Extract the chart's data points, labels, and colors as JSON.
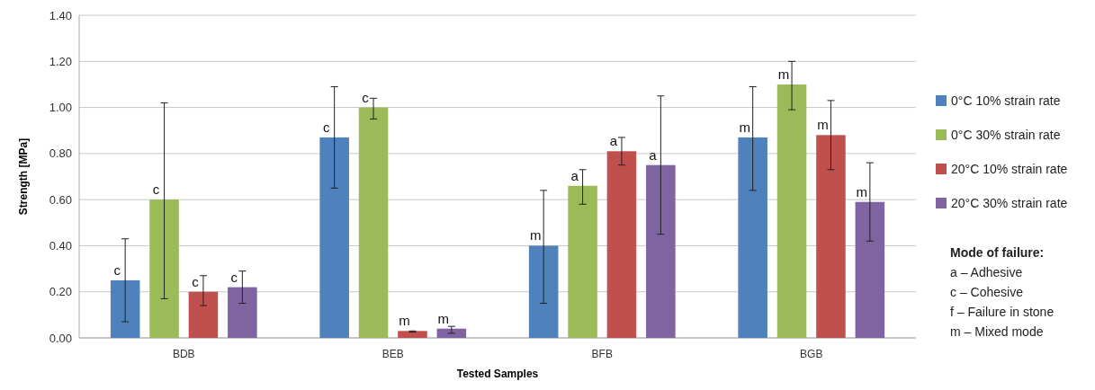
{
  "chart_data": {
    "type": "bar",
    "xlabel": "Tested Samples",
    "ylabel": "Strength [MPa]",
    "categories": [
      "BDB",
      "BEB",
      "BFB",
      "BGB"
    ],
    "series": [
      {
        "name": "0°C 10% strain rate",
        "color": "#4f81bd",
        "values": [
          0.25,
          0.87,
          0.4,
          0.87
        ],
        "errors": [
          [
            0.07,
            0.43
          ],
          [
            0.65,
            1.09
          ],
          [
            0.15,
            0.64
          ],
          [
            0.64,
            1.09
          ]
        ],
        "value_labels": [
          "c",
          "c",
          "m",
          "m"
        ]
      },
      {
        "name": "0°C 30% strain rate",
        "color": "#9bbb59",
        "values": [
          0.6,
          1.0,
          0.66,
          1.1
        ],
        "errors": [
          [
            0.17,
            1.02
          ],
          [
            0.95,
            1.04
          ],
          [
            0.58,
            0.73
          ],
          [
            0.99,
            1.2
          ]
        ],
        "value_labels": [
          "c",
          "c",
          "a",
          "m"
        ]
      },
      {
        "name": "20°C 10% strain rate",
        "color": "#c0504d",
        "values": [
          0.2,
          0.03,
          0.81,
          0.88
        ],
        "errors": [
          [
            0.14,
            0.27
          ],
          [
            0.025,
            0.03
          ],
          [
            0.75,
            0.87
          ],
          [
            0.73,
            1.03
          ]
        ],
        "value_labels": [
          "c",
          "m",
          "a",
          "m"
        ]
      },
      {
        "name": "20°C 30% strain rate",
        "color": "#8064a2",
        "values": [
          0.22,
          0.04,
          0.75,
          0.59
        ],
        "errors": [
          [
            0.15,
            0.29
          ],
          [
            0.02,
            0.05
          ],
          [
            0.45,
            1.05
          ],
          [
            0.42,
            0.76
          ]
        ],
        "value_labels": [
          "c",
          "m",
          "a",
          "m"
        ]
      }
    ],
    "ylim": [
      0,
      1.4
    ],
    "yticks": [
      {
        "value": 0,
        "label": "0.00"
      },
      {
        "value": 0.2,
        "label": "0.20"
      },
      {
        "value": 0.4,
        "label": "0.40"
      },
      {
        "value": 0.6,
        "label": "0.60"
      },
      {
        "value": 0.8,
        "label": "0.80"
      },
      {
        "value": 1.0,
        "label": "1.00"
      },
      {
        "value": 1.2,
        "label": "1.20"
      },
      {
        "value": 1.4,
        "label": "1.40"
      }
    ],
    "grid": "y",
    "legend": "right",
    "annotations": [
      "Mode of failure:",
      "a – Adhesive",
      "c – Cohesive",
      "f – Failure in stone",
      "m – Mixed mode"
    ]
  }
}
